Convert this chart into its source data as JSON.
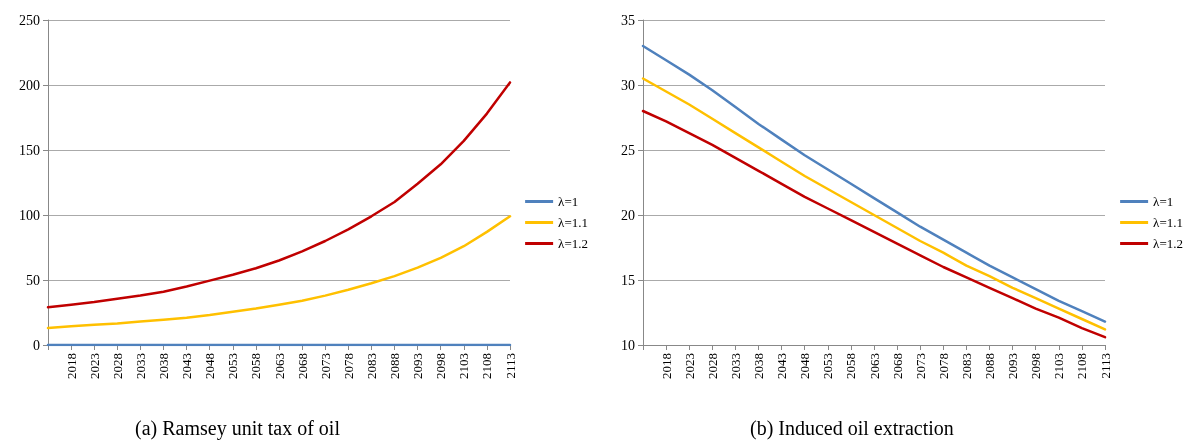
{
  "chart_data": [
    {
      "type": "line",
      "title": "(a) Ramsey unit tax of oil",
      "categories": [
        null,
        "2018",
        "2023",
        "2028",
        "2033",
        "2038",
        "2043",
        "2048",
        "2053",
        "2058",
        "2063",
        "2068",
        "2073",
        "2078",
        "2083",
        "2088",
        "2093",
        "2098",
        "2103",
        "2108",
        "2113"
      ],
      "series": [
        {
          "name": "λ=1",
          "color": "#4f81bd",
          "values": [
            0,
            0,
            0,
            0,
            0,
            0,
            0,
            0,
            0,
            0,
            0,
            0,
            0,
            0,
            0,
            0,
            0,
            0,
            0,
            0,
            0
          ]
        },
        {
          "name": "λ=1.1",
          "color": "#ffc000",
          "values": [
            13,
            14.5,
            15.5,
            16.5,
            18,
            19.5,
            21,
            23,
            25.5,
            28,
            31,
            34,
            38,
            42.5,
            47.5,
            53,
            59.5,
            67,
            76,
            87,
            99
          ]
        },
        {
          "name": "λ=1.2",
          "color": "#c00000",
          "values": [
            29,
            31,
            33,
            35.5,
            38,
            41,
            45,
            49.5,
            54,
            59,
            65,
            72,
            80,
            89,
            99,
            110,
            124,
            139,
            157,
            178,
            202
          ]
        }
      ],
      "ylim": [
        0,
        250
      ],
      "yticks": [
        0,
        50,
        100,
        150,
        200,
        250
      ],
      "grid": "y",
      "legend": "right",
      "marker": "none",
      "line_style": "solid"
    },
    {
      "type": "line",
      "title": "(b) Induced oil extraction",
      "categories": [
        null,
        "2018",
        "2023",
        "2028",
        "2033",
        "2038",
        "2043",
        "2048",
        "2053",
        "2058",
        "2063",
        "2068",
        "2073",
        "2078",
        "2083",
        "2088",
        "2093",
        "2098",
        "2103",
        "2108",
        "2113"
      ],
      "series": [
        {
          "name": "λ=1",
          "color": "#4f81bd",
          "values": [
            33,
            31.9,
            30.8,
            29.6,
            28.3,
            27,
            25.8,
            24.6,
            23.5,
            22.4,
            21.3,
            20.2,
            19.1,
            18.1,
            17.1,
            16.1,
            15.2,
            14.3,
            13.4,
            12.6,
            11.8
          ]
        },
        {
          "name": "λ=1.1",
          "color": "#ffc000",
          "values": [
            30.5,
            29.5,
            28.5,
            27.4,
            26.3,
            25.2,
            24.1,
            23,
            22,
            21,
            20,
            19,
            18,
            17.1,
            16.1,
            15.3,
            14.4,
            13.6,
            12.8,
            12,
            11.2
          ]
        },
        {
          "name": "λ=1.2",
          "color": "#c00000",
          "values": [
            28,
            27.2,
            26.3,
            25.4,
            24.4,
            23.4,
            22.4,
            21.4,
            20.5,
            19.6,
            18.7,
            17.8,
            16.9,
            16,
            15.2,
            14.4,
            13.6,
            12.8,
            12.1,
            11.3,
            10.6
          ]
        }
      ],
      "ylim": [
        10,
        35
      ],
      "yticks": [
        10,
        15,
        20,
        25,
        30,
        35
      ],
      "grid": "y",
      "legend": "right",
      "marker": "none",
      "line_style": "solid"
    }
  ]
}
